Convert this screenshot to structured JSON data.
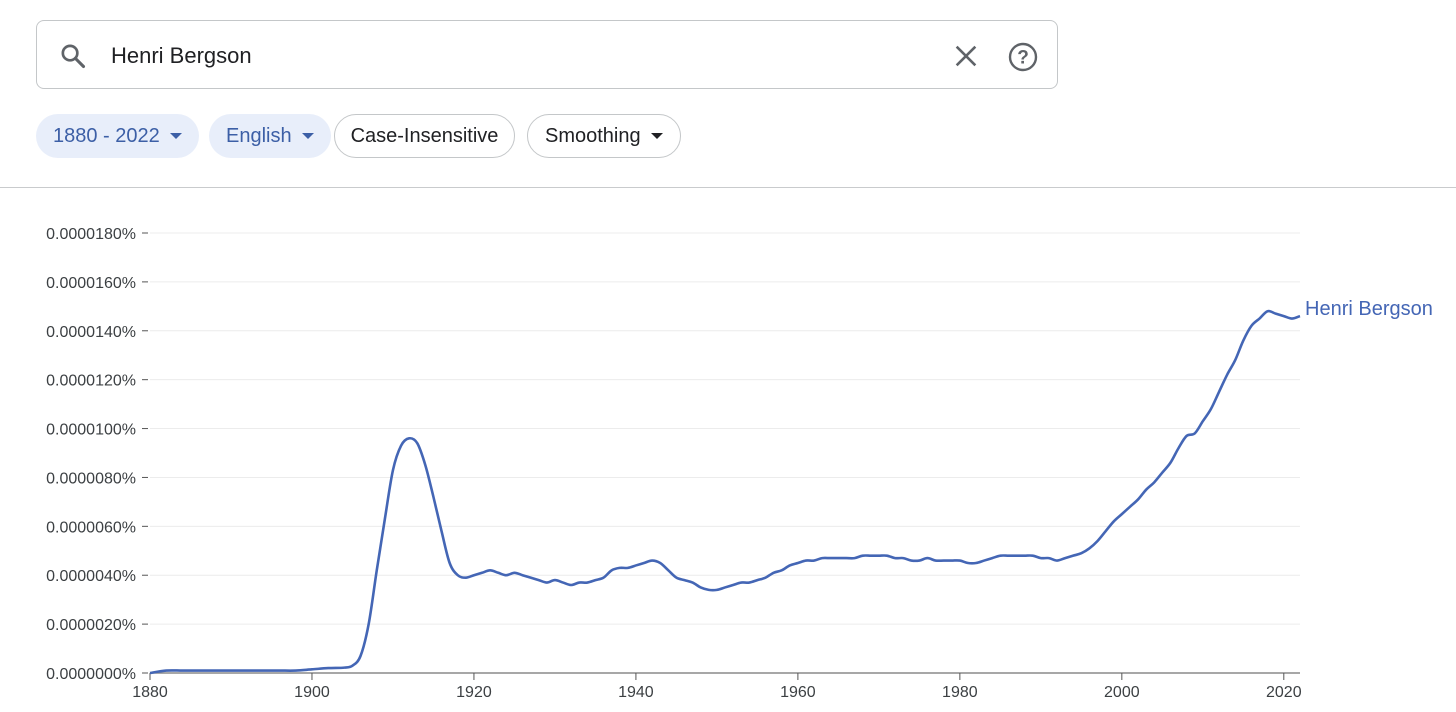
{
  "search": {
    "query": "Henri Bergson"
  },
  "filters": {
    "year_range": "1880 - 2022",
    "corpus": "English",
    "case": "Case-Insensitive",
    "smoothing": "Smoothing"
  },
  "colors": {
    "series": "#4466b5",
    "chip_selected_bg": "#e8eefa",
    "chip_selected_text": "#3c5fa6"
  },
  "icons": [
    "search-icon",
    "clear-icon",
    "help-icon",
    "caret-down-icon"
  ],
  "chart_data": {
    "type": "line",
    "title": "",
    "xlabel": "",
    "ylabel": "",
    "xlim": [
      1880,
      2022
    ],
    "ylim": [
      0,
      1.8e-05
    ],
    "x_ticks": [
      1880,
      1900,
      1920,
      1940,
      1960,
      1980,
      2000,
      2020
    ],
    "y_ticks": [
      "0.0000000%",
      "0.0000020%",
      "0.0000040%",
      "0.0000060%",
      "0.0000080%",
      "0.0000100%",
      "0.0000120%",
      "0.0000140%",
      "0.0000160%",
      "0.0000180%"
    ],
    "grid": true,
    "legend": "inline label at end of line",
    "series": [
      {
        "name": "Henri Bergson",
        "color": "#4466b5",
        "x": [
          1880,
          1882,
          1884,
          1886,
          1888,
          1890,
          1892,
          1894,
          1896,
          1898,
          1900,
          1902,
          1904,
          1905,
          1906,
          1907,
          1908,
          1909,
          1910,
          1911,
          1912,
          1913,
          1914,
          1915,
          1916,
          1917,
          1918,
          1919,
          1920,
          1921,
          1922,
          1923,
          1924,
          1925,
          1926,
          1927,
          1928,
          1929,
          1930,
          1931,
          1932,
          1933,
          1934,
          1935,
          1936,
          1937,
          1938,
          1939,
          1940,
          1941,
          1942,
          1943,
          1944,
          1945,
          1946,
          1947,
          1948,
          1949,
          1950,
          1951,
          1952,
          1953,
          1954,
          1955,
          1956,
          1957,
          1958,
          1959,
          1960,
          1961,
          1962,
          1963,
          1964,
          1965,
          1966,
          1967,
          1968,
          1969,
          1970,
          1971,
          1972,
          1973,
          1974,
          1975,
          1976,
          1977,
          1978,
          1979,
          1980,
          1981,
          1982,
          1983,
          1984,
          1985,
          1986,
          1987,
          1988,
          1989,
          1990,
          1991,
          1992,
          1993,
          1994,
          1995,
          1996,
          1997,
          1998,
          1999,
          2000,
          2001,
          2002,
          2003,
          2004,
          2005,
          2006,
          2007,
          2008,
          2009,
          2010,
          2011,
          2012,
          2013,
          2014,
          2015,
          2016,
          2017,
          2018,
          2019,
          2020,
          2021,
          2022
        ],
        "y": [
          0.0,
          1e-07,
          1e-07,
          1e-07,
          1e-07,
          1e-07,
          1e-07,
          1e-07,
          1e-07,
          1e-07,
          1.5e-07,
          2e-07,
          2.2e-07,
          3e-07,
          7e-07,
          2e-06,
          4.2e-06,
          6.3e-06,
          8.3e-06,
          9.3e-06,
          9.6e-06,
          9.4e-06,
          8.5e-06,
          7.2e-06,
          5.8e-06,
          4.5e-06,
          4e-06,
          3.9e-06,
          4e-06,
          4.1e-06,
          4.2e-06,
          4.1e-06,
          4e-06,
          4.1e-06,
          4e-06,
          3.9e-06,
          3.8e-06,
          3.7e-06,
          3.8e-06,
          3.7e-06,
          3.6e-06,
          3.7e-06,
          3.7e-06,
          3.8e-06,
          3.9e-06,
          4.2e-06,
          4.3e-06,
          4.3e-06,
          4.4e-06,
          4.5e-06,
          4.6e-06,
          4.5e-06,
          4.2e-06,
          3.9e-06,
          3.8e-06,
          3.7e-06,
          3.5e-06,
          3.4e-06,
          3.4e-06,
          3.5e-06,
          3.6e-06,
          3.7e-06,
          3.7e-06,
          3.8e-06,
          3.9e-06,
          4.1e-06,
          4.2e-06,
          4.4e-06,
          4.5e-06,
          4.6e-06,
          4.6e-06,
          4.7e-06,
          4.7e-06,
          4.7e-06,
          4.7e-06,
          4.7e-06,
          4.8e-06,
          4.8e-06,
          4.8e-06,
          4.8e-06,
          4.7e-06,
          4.7e-06,
          4.6e-06,
          4.6e-06,
          4.7e-06,
          4.6e-06,
          4.6e-06,
          4.6e-06,
          4.6e-06,
          4.5e-06,
          4.5e-06,
          4.6e-06,
          4.7e-06,
          4.8e-06,
          4.8e-06,
          4.8e-06,
          4.8e-06,
          4.8e-06,
          4.7e-06,
          4.7e-06,
          4.6e-06,
          4.7e-06,
          4.8e-06,
          4.9e-06,
          5.1e-06,
          5.4e-06,
          5.8e-06,
          6.2e-06,
          6.5e-06,
          6.8e-06,
          7.1e-06,
          7.5e-06,
          7.8e-06,
          8.2e-06,
          8.6e-06,
          9.2e-06,
          9.7e-06,
          9.8e-06,
          1.03e-05,
          1.08e-05,
          1.15e-05,
          1.22e-05,
          1.28e-05,
          1.36e-05,
          1.42e-05,
          1.45e-05,
          1.48e-05,
          1.47e-05,
          1.46e-05,
          1.45e-05,
          1.46e-05
        ]
      }
    ]
  }
}
